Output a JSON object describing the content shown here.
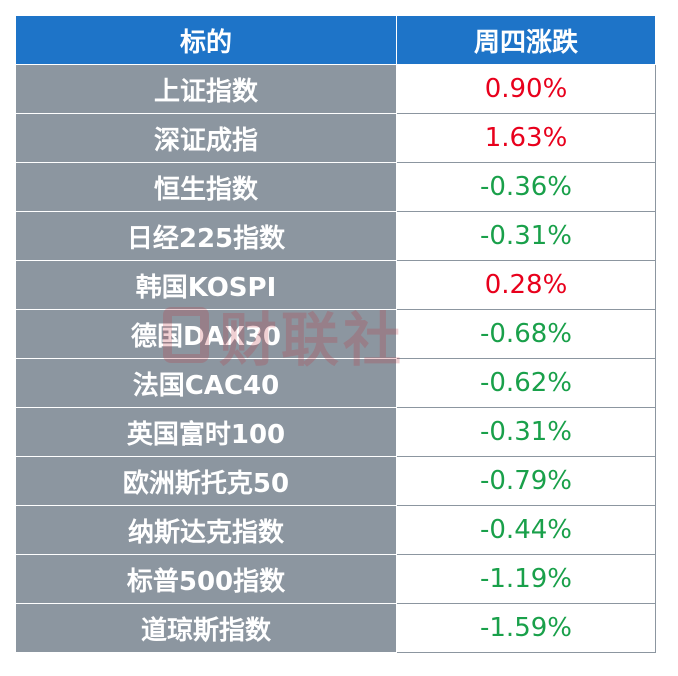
{
  "header": {
    "col_name": "标的",
    "col_change": "周四涨跌"
  },
  "rows": [
    {
      "name": "上证指数",
      "change": "0.90%",
      "direction": "up"
    },
    {
      "name": "深证成指",
      "change": "1.63%",
      "direction": "up"
    },
    {
      "name": "恒生指数",
      "change": "-0.36%",
      "direction": "down"
    },
    {
      "name": "日经225指数",
      "change": "-0.31%",
      "direction": "down"
    },
    {
      "name": "韩国KOSPI",
      "change": "0.28%",
      "direction": "up"
    },
    {
      "name": "德国DAX30",
      "change": "-0.68%",
      "direction": "down"
    },
    {
      "name": "法国CAC40",
      "change": "-0.62%",
      "direction": "down"
    },
    {
      "name": "英国富时100",
      "change": "-0.31%",
      "direction": "down"
    },
    {
      "name": "欧洲斯托克50",
      "change": "-0.79%",
      "direction": "down"
    },
    {
      "name": "纳斯达克指数",
      "change": "-0.44%",
      "direction": "down"
    },
    {
      "name": "标普500指数",
      "change": "-1.19%",
      "direction": "down"
    },
    {
      "name": "道琼斯指数",
      "change": "-1.59%",
      "direction": "down"
    }
  ],
  "watermark": {
    "text": "财联社"
  },
  "colors": {
    "header_bg": "#1e74c8",
    "name_bg": "#8c96a0",
    "up": "#e8001c",
    "down": "#19a04a"
  }
}
